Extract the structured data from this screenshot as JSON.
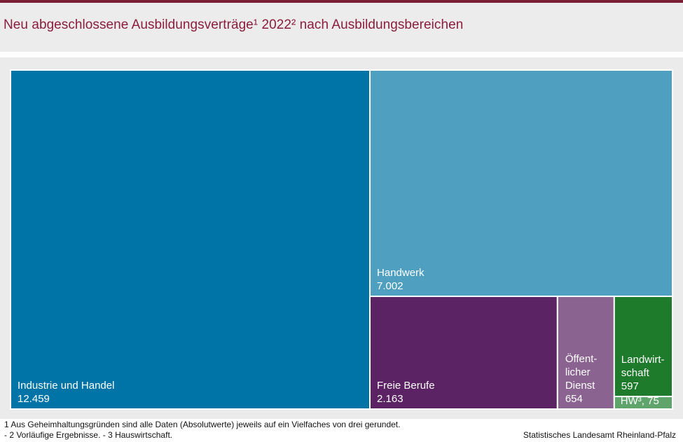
{
  "title": "Neu abgeschlossene Ausbildungsverträge¹ 2022² nach Ausbildungsbereichen",
  "chart_data": {
    "type": "treemap",
    "title": "Neu abgeschlossene Ausbildungsverträge¹ 2022² nach Ausbildungsbereichen",
    "items": [
      {
        "name": "Industrie und Handel",
        "value": 12459,
        "label_lines": [
          "Industrie und Handel"
        ],
        "value_label": "12.459",
        "color": "#0074a6"
      },
      {
        "name": "Handwerk",
        "value": 7002,
        "label_lines": [
          "Handwerk"
        ],
        "value_label": "7.002",
        "color": "#4f9fc1"
      },
      {
        "name": "Freie Berufe",
        "value": 2163,
        "label_lines": [
          "Freie Berufe"
        ],
        "value_label": "2.163",
        "color": "#5b2363"
      },
      {
        "name": "Öffentlicher Dienst",
        "value": 654,
        "label_lines": [
          "Öffent-",
          "licher",
          "Dienst"
        ],
        "value_label": "654",
        "color": "#8b6391"
      },
      {
        "name": "Landwirtschaft",
        "value": 597,
        "label_lines": [
          "Landwirt-",
          "schaft"
        ],
        "value_label": "597",
        "color": "#1e7b2b"
      },
      {
        "name": "HW³",
        "value": 75,
        "label_lines": [
          "HW³, 75"
        ],
        "value_label": "",
        "color": "#5ea46b"
      }
    ]
  },
  "footnotes": {
    "line1": "1 Aus Geheimhaltungsgründen sind alle Daten (Absolutwerte) jeweils auf ein Vielfaches von drei gerundet.",
    "line2": "- 2 Vorläufige Ergebnisse. - 3 Hauswirtschaft."
  },
  "source": "Statistisches Landesamt Rheinland-Pfalz"
}
